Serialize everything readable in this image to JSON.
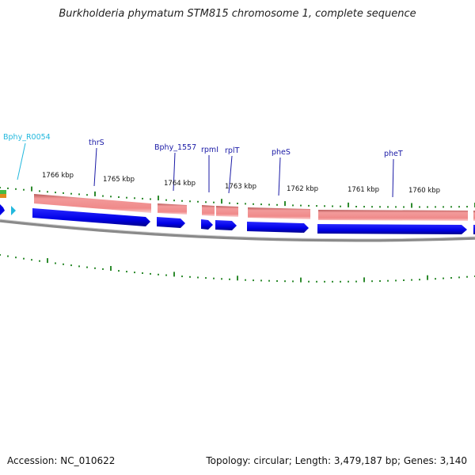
{
  "title": "Burkholderia phymatum STM815 chromosome 1, complete sequence",
  "footer": {
    "accession": "Accession: NC_010622",
    "summary": "Topology: circular; Length: 3,479,187 bp; Genes: 3,140"
  },
  "scale_labels": [
    "1766 kbp",
    "1765 kbp",
    "1764 kbp",
    "1763 kbp",
    "1762 kbp",
    "1761 kbp",
    "1760 kbp"
  ],
  "gene_labels": [
    "Bphy_R0054",
    "thrS",
    "Bphy_1557",
    "rpmI",
    "rplT",
    "pheS",
    "pheT"
  ],
  "colors": {
    "cds": "#0000e6",
    "gene": "#f08a8a",
    "rrna": "#22b8dd",
    "ticks": "#2e8b2e",
    "backbone": "#8a8a8a",
    "label": "#1a1aa6"
  }
}
